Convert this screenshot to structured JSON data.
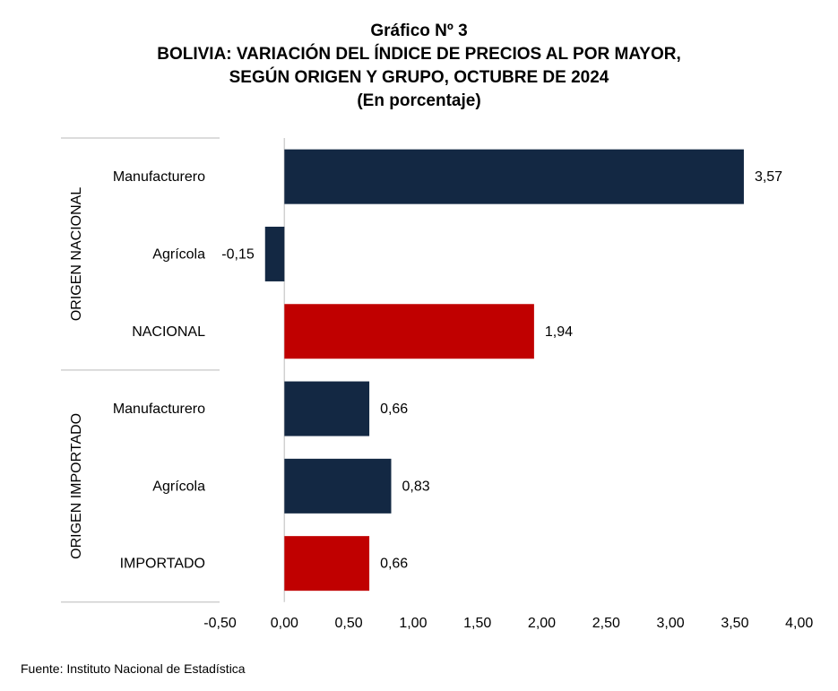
{
  "chart_data": {
    "type": "bar",
    "orientation": "horizontal",
    "title": "Gráfico Nº 3",
    "subtitle": [
      "BOLIVIA: VARIACIÓN DEL ÍNDICE DE PRECIOS AL POR MAYOR,",
      "SEGÚN ORIGEN Y GRUPO, OCTUBRE DE 2024",
      "(En porcentaje)"
    ],
    "groups": [
      {
        "label": "ORIGEN NACIONAL",
        "bars": [
          {
            "category": "Manufacturero",
            "value": 3.57,
            "value_label": "3,57",
            "color": "#132843"
          },
          {
            "category": "Agrícola",
            "value": -0.15,
            "value_label": "-0,15",
            "color": "#132843"
          },
          {
            "category": "NACIONAL",
            "value": 1.94,
            "value_label": "1,94",
            "color": "#c00000"
          }
        ]
      },
      {
        "label": "ORIGEN IMPORTADO",
        "bars": [
          {
            "category": "Manufacturero",
            "value": 0.66,
            "value_label": "0,66",
            "color": "#132843"
          },
          {
            "category": "Agrícola",
            "value": 0.83,
            "value_label": "0,83",
            "color": "#132843"
          },
          {
            "category": "IMPORTADO",
            "value": 0.66,
            "value_label": "0,66",
            "color": "#c00000"
          }
        ]
      }
    ],
    "xlim": [
      -0.5,
      4.0
    ],
    "xticks": [
      {
        "value": -0.5,
        "label": "-0,50"
      },
      {
        "value": 0.0,
        "label": "0,00"
      },
      {
        "value": 0.5,
        "label": "0,50"
      },
      {
        "value": 1.0,
        "label": "1,00"
      },
      {
        "value": 1.5,
        "label": "1,50"
      },
      {
        "value": 2.0,
        "label": "2,00"
      },
      {
        "value": 2.5,
        "label": "2,50"
      },
      {
        "value": 3.0,
        "label": "3,00"
      },
      {
        "value": 3.5,
        "label": "3,50"
      },
      {
        "value": 4.0,
        "label": "4,00"
      }
    ],
    "grid": false,
    "legend": "none"
  },
  "source": "Fuente: Instituto Nacional de Estadística"
}
